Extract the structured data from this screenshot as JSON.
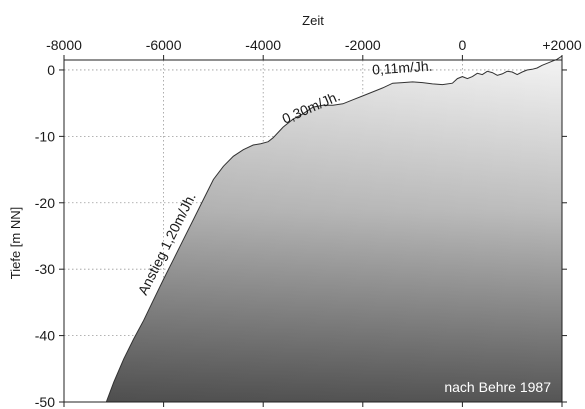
{
  "chart_data": {
    "type": "area",
    "xlabel": "Zeit",
    "ylabel": "Tiefe [m NN]",
    "xlim": [
      -8000,
      2000
    ],
    "ylim": [
      -50,
      1.5
    ],
    "xticks": [
      -8000,
      -6000,
      -4000,
      -2000,
      0,
      2000
    ],
    "xtick_labels": [
      "-8000",
      "-6000",
      "-4000",
      "-2000",
      "0",
      "+2000"
    ],
    "yticks": [
      0,
      -10,
      -20,
      -30,
      -40,
      -50
    ],
    "ytick_labels": [
      "0",
      "-10",
      "-20",
      "-30",
      "-40",
      "-50"
    ],
    "grid": true,
    "x": [
      -7150,
      -7000,
      -6800,
      -6600,
      -6400,
      -6200,
      -6000,
      -5800,
      -5600,
      -5400,
      -5200,
      -5000,
      -4800,
      -4600,
      -4400,
      -4200,
      -4050,
      -3900,
      -3800,
      -3600,
      -3400,
      -3200,
      -3000,
      -2800,
      -2600,
      -2400,
      -2200,
      -2000,
      -1800,
      -1600,
      -1400,
      -1200,
      -1000,
      -800,
      -600,
      -400,
      -200,
      -100,
      0,
      100,
      200,
      300,
      400,
      500,
      600,
      700,
      800,
      900,
      1000,
      1100,
      1200,
      1300,
      1400,
      1500,
      1600,
      1700,
      1800,
      1900,
      2000
    ],
    "y": [
      -50,
      -47,
      -43.5,
      -40.5,
      -37.7,
      -34.6,
      -31.5,
      -28.5,
      -25.5,
      -22.5,
      -19.5,
      -16.5,
      -14.5,
      -13.0,
      -12.0,
      -11.3,
      -11.1,
      -10.8,
      -10.2,
      -8.6,
      -7.4,
      -6.6,
      -5.6,
      -5.3,
      -5.3,
      -5.1,
      -4.5,
      -3.9,
      -3.3,
      -2.7,
      -2.0,
      -1.9,
      -1.8,
      -1.9,
      -2.1,
      -2.2,
      -2.0,
      -1.3,
      -1.0,
      -1.3,
      -1.0,
      -0.5,
      -0.7,
      -0.2,
      -0.4,
      -0.8,
      -0.6,
      -0.2,
      -0.3,
      -0.7,
      -0.3,
      0.0,
      0.1,
      0.3,
      0.7,
      1.0,
      1.3,
      1.6,
      2.1
    ],
    "annotations": [
      {
        "text": "Anstieg 1,20m/Jh.",
        "x": -5850,
        "y": -26.5
      },
      {
        "text": "0,30m/Jh.",
        "x": -3000,
        "y": -6.3
      },
      {
        "text": "0,11m/Jh.",
        "x": -1200,
        "y": -0.4
      }
    ],
    "credit": "nach Behre 1987"
  }
}
